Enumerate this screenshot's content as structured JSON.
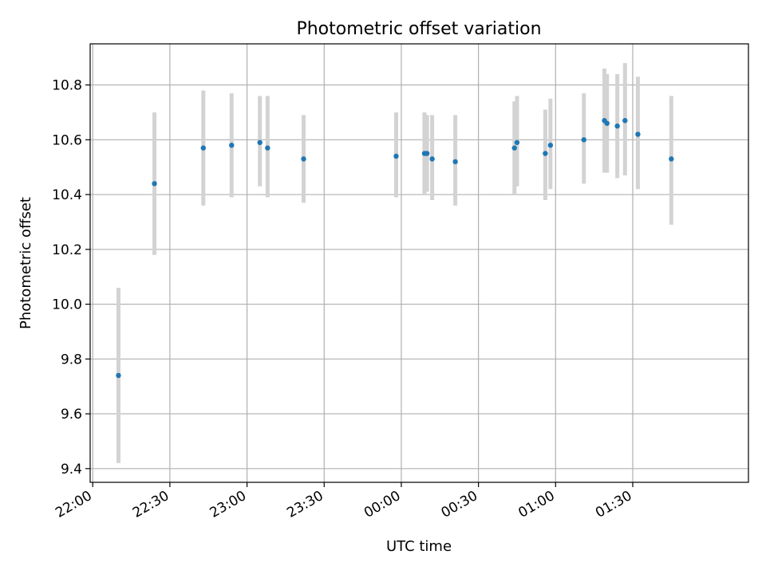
{
  "chart_data": {
    "type": "scatter",
    "title": "Photometric offset variation",
    "xlabel": "UTC time",
    "ylabel": "Photometric offset",
    "x_unit": "time of day (UTC), crossing midnight",
    "xlim": [
      "21:59",
      "02:15"
    ],
    "ylim": [
      9.35,
      10.95
    ],
    "grid": true,
    "point_color": "#1f77b4",
    "errorbar_color": "#d3d3d3",
    "x_ticks": [
      {
        "time": "22:00",
        "label": "22:00"
      },
      {
        "time": "22:30",
        "label": "22:30"
      },
      {
        "time": "23:00",
        "label": "23:00"
      },
      {
        "time": "23:30",
        "label": "23:30"
      },
      {
        "time": "00:00",
        "label": "00:00"
      },
      {
        "time": "00:30",
        "label": "00:30"
      },
      {
        "time": "01:00",
        "label": "01:00"
      },
      {
        "time": "01:30",
        "label": "01:30"
      }
    ],
    "y_ticks": [
      {
        "value": 9.4,
        "label": "9.4"
      },
      {
        "value": 9.6,
        "label": "9.6"
      },
      {
        "value": 9.8,
        "label": "9.8"
      },
      {
        "value": 10.0,
        "label": "10.0"
      },
      {
        "value": 10.2,
        "label": "10.2"
      },
      {
        "value": 10.4,
        "label": "10.4"
      },
      {
        "value": 10.6,
        "label": "10.6"
      },
      {
        "value": 10.8,
        "label": "10.8"
      }
    ],
    "points": [
      {
        "time": "22:10",
        "y": 9.74,
        "low": 9.42,
        "high": 10.06
      },
      {
        "time": "22:24",
        "y": 10.44,
        "low": 10.18,
        "high": 10.7
      },
      {
        "time": "22:43",
        "y": 10.57,
        "low": 10.36,
        "high": 10.78
      },
      {
        "time": "22:54",
        "y": 10.58,
        "low": 10.39,
        "high": 10.77
      },
      {
        "time": "23:05",
        "y": 10.59,
        "low": 10.43,
        "high": 10.76
      },
      {
        "time": "23:08",
        "y": 10.57,
        "low": 10.39,
        "high": 10.76
      },
      {
        "time": "23:22",
        "y": 10.53,
        "low": 10.37,
        "high": 10.69
      },
      {
        "time": "23:58",
        "y": 10.54,
        "low": 10.39,
        "high": 10.7
      },
      {
        "time": "00:09",
        "y": 10.55,
        "low": 10.4,
        "high": 10.7
      },
      {
        "time": "00:10",
        "y": 10.55,
        "low": 10.41,
        "high": 10.69
      },
      {
        "time": "00:12",
        "y": 10.53,
        "low": 10.38,
        "high": 10.69
      },
      {
        "time": "00:21",
        "y": 10.52,
        "low": 10.36,
        "high": 10.69
      },
      {
        "time": "00:44",
        "y": 10.57,
        "low": 10.4,
        "high": 10.74
      },
      {
        "time": "00:45",
        "y": 10.59,
        "low": 10.43,
        "high": 10.76
      },
      {
        "time": "00:56",
        "y": 10.55,
        "low": 10.38,
        "high": 10.71
      },
      {
        "time": "00:58",
        "y": 10.58,
        "low": 10.42,
        "high": 10.75
      },
      {
        "time": "01:11",
        "y": 10.6,
        "low": 10.44,
        "high": 10.77
      },
      {
        "time": "01:19",
        "y": 10.67,
        "low": 10.48,
        "high": 10.86
      },
      {
        "time": "01:20",
        "y": 10.66,
        "low": 10.48,
        "high": 10.84
      },
      {
        "time": "01:24",
        "y": 10.65,
        "low": 10.46,
        "high": 10.84
      },
      {
        "time": "01:27",
        "y": 10.67,
        "low": 10.47,
        "high": 10.88
      },
      {
        "time": "01:32",
        "y": 10.62,
        "low": 10.42,
        "high": 10.83
      },
      {
        "time": "01:45",
        "y": 10.53,
        "low": 10.29,
        "high": 10.76
      }
    ]
  }
}
